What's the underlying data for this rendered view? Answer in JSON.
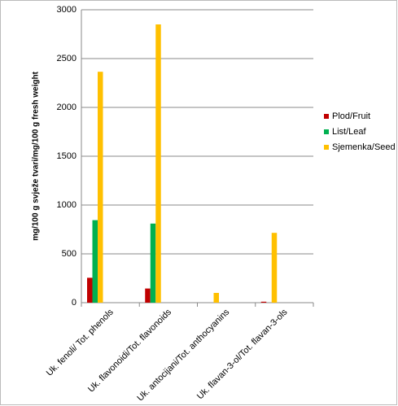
{
  "chart_data": {
    "type": "bar",
    "y_label": "mg/100 g svježe tvari/mg/100 g fresh weight",
    "categories": [
      "Uk. fenoli/ Tot. phenols",
      "Uk. flavonoidi/Tot. flavonoids",
      "Uk. antocijani/Tot. anthocyanins",
      "Uk. flavan-3-ol/Tot. flavan-3-ols"
    ],
    "series": [
      {
        "name": "Plod/Fruit",
        "color": "#c00000",
        "values": [
          255,
          145,
          0,
          10
        ]
      },
      {
        "name": "List/Leaf",
        "color": "#00b050",
        "values": [
          845,
          810,
          0,
          0
        ]
      },
      {
        "name": "Sjemenka/Seed",
        "color": "#ffc000",
        "values": [
          2365,
          2850,
          100,
          715
        ]
      }
    ],
    "ylim": [
      0,
      3000
    ],
    "yticks": [
      0,
      500,
      1000,
      1500,
      2000,
      2500,
      3000
    ],
    "grid": true,
    "legend": "right"
  }
}
